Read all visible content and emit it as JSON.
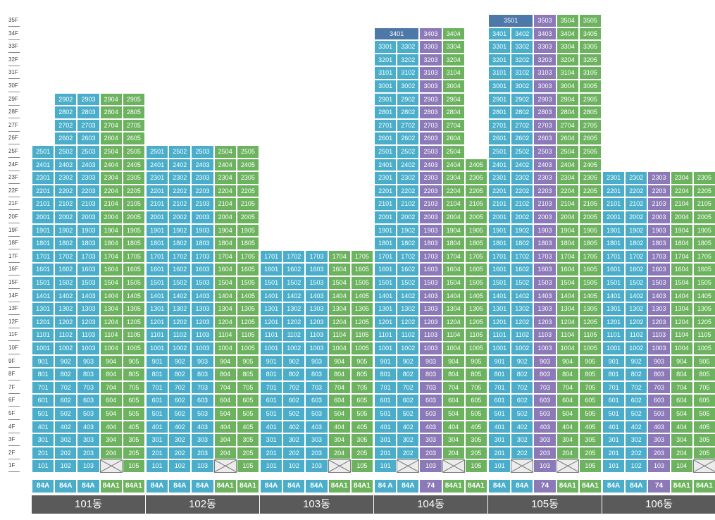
{
  "floor_labels": [
    "35F",
    "34F",
    "33F",
    "32F",
    "31F",
    "30F",
    "29F",
    "28F",
    "27F",
    "26F",
    "25F",
    "24F",
    "23F",
    "22F",
    "21F",
    "20F",
    "19F",
    "18F",
    "17F",
    "16F",
    "15F",
    "14F",
    "13F",
    "12F",
    "11F",
    "10F",
    "9F",
    "8F",
    "7F",
    "6F",
    "5F",
    "4F",
    "3F",
    "2F",
    "1F"
  ],
  "colors": {
    "blue": "#4aaecb",
    "green": "#6db35f",
    "purple": "#8c79b8",
    "navy": "#4e78a8",
    "label_bg": "#5a5a5a"
  },
  "buildings": [
    {
      "name": "101동",
      "max_floor": 29,
      "types": [
        "84A",
        "84A",
        "84A",
        "84A1",
        "84A1"
      ],
      "type_colors": [
        "blue",
        "blue",
        "blue",
        "green",
        "green"
      ],
      "unit_colors": [
        "blue",
        "blue",
        "blue",
        "green",
        "green"
      ],
      "missing_line1_from": 26,
      "empty": [
        "104"
      ],
      "top_merge": []
    },
    {
      "name": "102동",
      "max_floor": 25,
      "types": [
        "84A",
        "84A",
        "84A",
        "84A1",
        "84A1"
      ],
      "type_colors": [
        "blue",
        "blue",
        "blue",
        "green",
        "green"
      ],
      "unit_colors": [
        "blue",
        "blue",
        "blue",
        "green",
        "green"
      ],
      "missing_line1_from": 99,
      "empty": [
        "104"
      ],
      "top_merge": []
    },
    {
      "name": "103동",
      "max_floor": 17,
      "types": [
        "84A",
        "84A",
        "84A",
        "84A1",
        "84A1"
      ],
      "type_colors": [
        "blue",
        "blue",
        "blue",
        "green",
        "green"
      ],
      "unit_colors": [
        "blue",
        "blue",
        "blue",
        "green",
        "green"
      ],
      "missing_line1_from": 99,
      "empty": [
        "104"
      ],
      "top_merge": []
    },
    {
      "name": "104동",
      "max_floor": 34,
      "types": [
        "84 A",
        "84A",
        "74",
        "84A1",
        "84A1"
      ],
      "type_colors": [
        "blue",
        "blue",
        "purple",
        "green",
        "green"
      ],
      "unit_colors": [
        "blue",
        "blue",
        "purple",
        "green",
        "green"
      ],
      "missing_line5_from": 25,
      "empty": [
        "102",
        "104"
      ],
      "top_merge": [
        {
          "floor": 34,
          "label": "3401"
        }
      ]
    },
    {
      "name": "105동",
      "max_floor": 35,
      "types": [
        "84A",
        "84A",
        "74",
        "84A1",
        "84A1"
      ],
      "type_colors": [
        "blue",
        "blue",
        "purple",
        "green",
        "green"
      ],
      "unit_colors": [
        "blue",
        "blue",
        "purple",
        "green",
        "green"
      ],
      "empty": [
        "102",
        "104"
      ],
      "top_merge": [
        {
          "floor": 35,
          "label": "3501"
        }
      ],
      "missing_line2_floor": 35
    },
    {
      "name": "106동",
      "max_floor": 23,
      "types": [
        "84A",
        "84A",
        "74",
        "84A1",
        "84A1"
      ],
      "type_colors": [
        "blue",
        "blue",
        "purple",
        "green",
        "green"
      ],
      "unit_colors": [
        "blue",
        "blue",
        "purple",
        "green",
        "green"
      ],
      "empty": [
        "105"
      ],
      "top_merge": []
    }
  ]
}
